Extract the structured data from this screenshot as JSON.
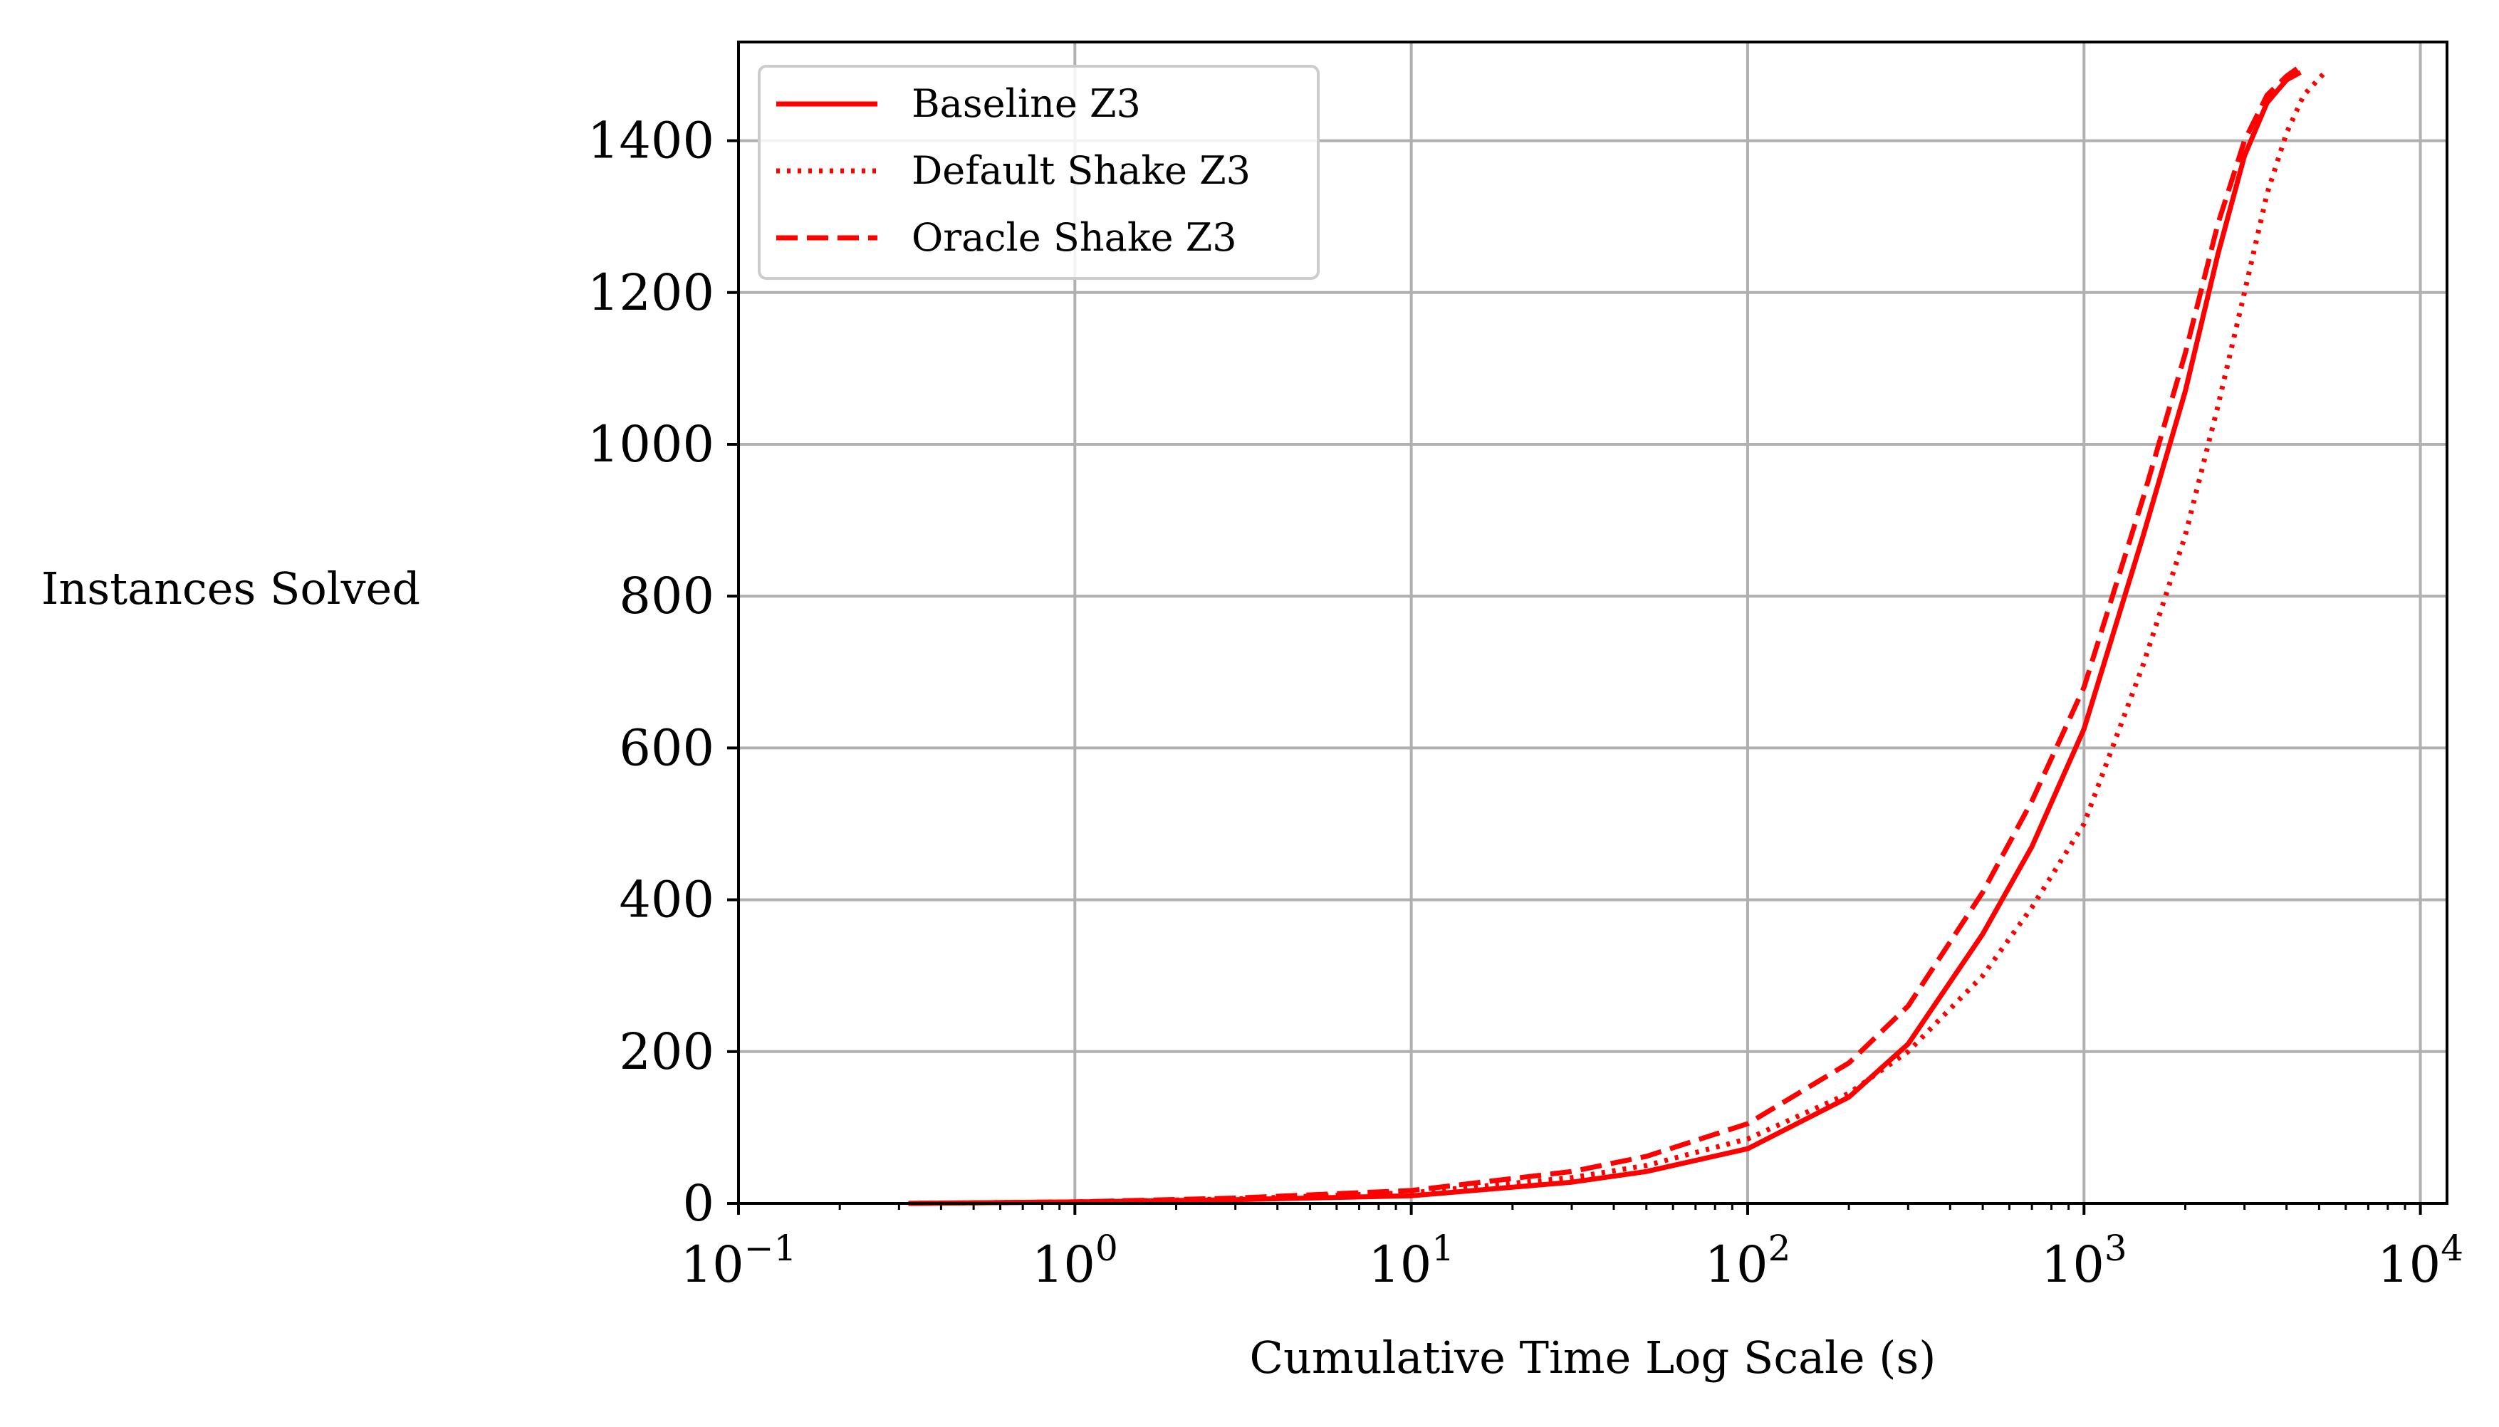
{
  "chart_data": {
    "type": "line",
    "xscale": "log",
    "xlabel": "Cumulative Time Log Scale (s)",
    "ylabel": "Instances Solved",
    "xlim": [
      0.1,
      12000
    ],
    "ylim": [
      0,
      1530
    ],
    "grid": true,
    "legend_position": "upper-left",
    "x_ticks": [
      {
        "base": "10",
        "exp": "−1",
        "value": 0.1
      },
      {
        "base": "10",
        "exp": "0",
        "value": 1
      },
      {
        "base": "10",
        "exp": "1",
        "value": 10
      },
      {
        "base": "10",
        "exp": "2",
        "value": 100
      },
      {
        "base": "10",
        "exp": "3",
        "value": 1000
      },
      {
        "base": "10",
        "exp": "4",
        "value": 10000
      }
    ],
    "y_ticks": [
      "0",
      "200",
      "400",
      "600",
      "800",
      "1000",
      "1200",
      "1400"
    ],
    "series": [
      {
        "name": "Baseline Z3",
        "style": "solid",
        "color": "#ff0000",
        "x": [
          0.32,
          1,
          3,
          10,
          30,
          50,
          100,
          200,
          300,
          500,
          700,
          1000,
          1500,
          2000,
          2500,
          3000,
          3500,
          4000,
          4400
        ],
        "y": [
          0,
          2,
          5,
          10,
          28,
          42,
          72,
          140,
          210,
          355,
          470,
          625,
          880,
          1070,
          1250,
          1380,
          1450,
          1480,
          1490
        ]
      },
      {
        "name": "Default Shake Z3",
        "style": "dotted",
        "color": "#ff0000",
        "x": [
          0.32,
          1,
          3,
          10,
          30,
          50,
          100,
          200,
          300,
          500,
          700,
          1000,
          1500,
          2000,
          2500,
          3000,
          3500,
          4000,
          4500,
          5200
        ],
        "y": [
          0,
          2,
          6,
          14,
          34,
          50,
          85,
          145,
          200,
          300,
          390,
          500,
          710,
          880,
          1050,
          1200,
          1330,
          1410,
          1460,
          1490
        ]
      },
      {
        "name": "Oracle Shake Z3",
        "style": "dashed",
        "color": "#ff0000",
        "x": [
          0.32,
          1,
          3,
          10,
          30,
          50,
          100,
          200,
          300,
          500,
          700,
          1000,
          1500,
          2000,
          2500,
          3000,
          3500,
          4000,
          4300
        ],
        "y": [
          0,
          2,
          7,
          17,
          42,
          62,
          105,
          185,
          260,
          410,
          530,
          680,
          930,
          1120,
          1290,
          1400,
          1460,
          1485,
          1495
        ]
      }
    ]
  }
}
